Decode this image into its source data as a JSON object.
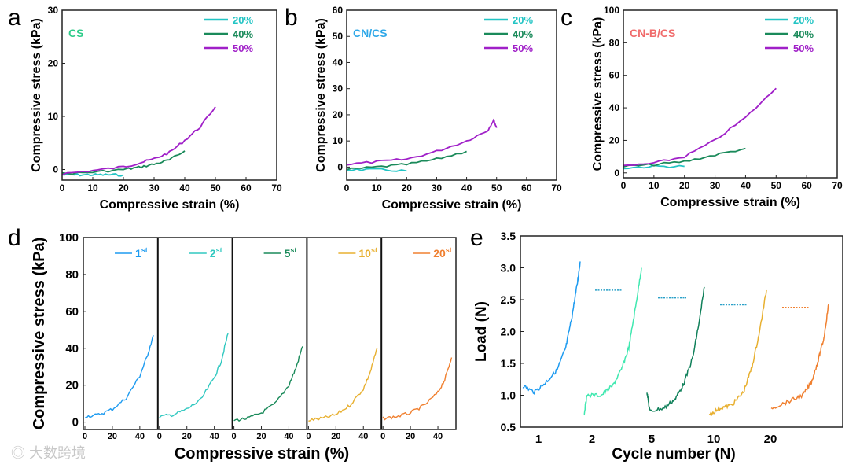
{
  "watermark": "大数跨境",
  "chart_data": [
    {
      "panel": "a",
      "type": "line",
      "title": "CS",
      "title_color": "#2ecc8a",
      "xlabel": "Compressive strain (%)",
      "ylabel": "Compressive stress (kPa)",
      "xlim": [
        0,
        70
      ],
      "ylim": [
        -2,
        30
      ],
      "xticks": [
        0,
        10,
        20,
        30,
        40,
        50,
        60,
        70
      ],
      "yticks": [
        0,
        10,
        20,
        30
      ],
      "legend": "top-right",
      "series": [
        {
          "name": "20%",
          "color": "#22c4c4",
          "points": [
            [
              0,
              -1
            ],
            [
              5,
              -1
            ],
            [
              10,
              -1
            ],
            [
              15,
              -1
            ],
            [
              20,
              -1
            ]
          ]
        },
        {
          "name": "40%",
          "color": "#1a8a5a",
          "points": [
            [
              0,
              -0.8
            ],
            [
              10,
              -0.5
            ],
            [
              20,
              0
            ],
            [
              25,
              0.4
            ],
            [
              30,
              1
            ],
            [
              35,
              1.8
            ],
            [
              40,
              3.5
            ]
          ]
        },
        {
          "name": "50%",
          "color": "#a020c8",
          "points": [
            [
              0,
              -0.8
            ],
            [
              10,
              -0.2
            ],
            [
              20,
              0.5
            ],
            [
              25,
              1.2
            ],
            [
              30,
              2
            ],
            [
              35,
              3.2
            ],
            [
              40,
              5.5
            ],
            [
              45,
              8
            ],
            [
              50,
              11.8
            ]
          ]
        }
      ]
    },
    {
      "panel": "b",
      "type": "line",
      "title": "CN/CS",
      "title_color": "#2fa8e8",
      "xlabel": "Compressive strain (%)",
      "ylabel": "Compressive stress (kPa)",
      "xlim": [
        0,
        70
      ],
      "ylim": [
        -5,
        60
      ],
      "xticks": [
        0,
        10,
        20,
        30,
        40,
        50,
        60,
        70
      ],
      "yticks": [
        0,
        10,
        20,
        30,
        40,
        50,
        60
      ],
      "legend": "top-right",
      "series": [
        {
          "name": "20%",
          "color": "#22c4c4",
          "points": [
            [
              0,
              -1
            ],
            [
              10,
              -1
            ],
            [
              20,
              -1.5
            ]
          ]
        },
        {
          "name": "40%",
          "color": "#1a8a5a",
          "points": [
            [
              0,
              -1
            ],
            [
              10,
              0
            ],
            [
              20,
              1
            ],
            [
              30,
              3
            ],
            [
              40,
              6
            ]
          ]
        },
        {
          "name": "50%",
          "color": "#a020c8",
          "points": [
            [
              0,
              1
            ],
            [
              10,
              2
            ],
            [
              20,
              3
            ],
            [
              30,
              6
            ],
            [
              40,
              10
            ],
            [
              47,
              14
            ],
            [
              49,
              18
            ],
            [
              50,
              15
            ]
          ]
        }
      ]
    },
    {
      "panel": "c",
      "type": "line",
      "title": "CN-B/CS",
      "title_color": "#f06a6a",
      "xlabel": "Compressive strain (%)",
      "ylabel": "Compressive stress (kPa)",
      "xlim": [
        0,
        70
      ],
      "ylim": [
        -3,
        100
      ],
      "xticks": [
        0,
        10,
        20,
        30,
        40,
        50,
        60,
        70
      ],
      "yticks": [
        0,
        20,
        40,
        60,
        80,
        100
      ],
      "legend": "top-right",
      "series": [
        {
          "name": "20%",
          "color": "#22c4c4",
          "points": [
            [
              0,
              3
            ],
            [
              10,
              4
            ],
            [
              20,
              4
            ]
          ]
        },
        {
          "name": "40%",
          "color": "#1a8a5a",
          "points": [
            [
              0,
              4
            ],
            [
              10,
              5
            ],
            [
              20,
              7
            ],
            [
              30,
              11
            ],
            [
              40,
              15
            ]
          ]
        },
        {
          "name": "50%",
          "color": "#a020c8",
          "points": [
            [
              0,
              4
            ],
            [
              10,
              6
            ],
            [
              20,
              10
            ],
            [
              30,
              20
            ],
            [
              40,
              34
            ],
            [
              50,
              52
            ]
          ]
        }
      ]
    },
    {
      "panel": "d",
      "type": "line",
      "xlabel": "Compressive strain (%)",
      "ylabel": "Compressive stress (kPa)",
      "xlim": [
        0,
        52
      ],
      "ylim": [
        -4,
        100
      ],
      "xticks": [
        0,
        20,
        40
      ],
      "yticks": [
        0,
        20,
        40,
        60,
        80,
        100
      ],
      "subpanels": [
        {
          "name": "1",
          "sup": "st",
          "color": "#1e9bf0",
          "points": [
            [
              0,
              3
            ],
            [
              10,
              4
            ],
            [
              20,
              7
            ],
            [
              30,
              13
            ],
            [
              40,
              25
            ],
            [
              45,
              35
            ],
            [
              50,
              47
            ]
          ]
        },
        {
          "name": "2",
          "sup": "st",
          "color": "#30c8c0",
          "points": [
            [
              0,
              3
            ],
            [
              10,
              4
            ],
            [
              20,
              7
            ],
            [
              30,
              12
            ],
            [
              40,
              24
            ],
            [
              45,
              33
            ],
            [
              50,
              48
            ]
          ]
        },
        {
          "name": "5",
          "sup": "st",
          "color": "#1a8a5a",
          "points": [
            [
              0,
              1
            ],
            [
              10,
              2
            ],
            [
              20,
              5
            ],
            [
              30,
              10
            ],
            [
              40,
              20
            ],
            [
              45,
              29
            ],
            [
              50,
              41
            ]
          ]
        },
        {
          "name": "10",
          "sup": "st",
          "color": "#e8b030",
          "points": [
            [
              0,
              1
            ],
            [
              10,
              2
            ],
            [
              20,
              4
            ],
            [
              30,
              9
            ],
            [
              40,
              18
            ],
            [
              45,
              27
            ],
            [
              50,
              40
            ]
          ]
        },
        {
          "name": "20",
          "sup": "st",
          "color": "#f08030",
          "points": [
            [
              0,
              2
            ],
            [
              10,
              3
            ],
            [
              20,
              5
            ],
            [
              30,
              9
            ],
            [
              40,
              16
            ],
            [
              45,
              23
            ],
            [
              50,
              35
            ]
          ]
        }
      ]
    },
    {
      "panel": "e",
      "type": "line",
      "xlabel": "Cycle number (N)",
      "ylabel": "Load (N)",
      "ylim": [
        0.5,
        3.5
      ],
      "yticks": [
        0.5,
        1.0,
        1.5,
        2.0,
        2.5,
        3.0,
        3.5
      ],
      "categories": [
        "1",
        "2",
        "5",
        "10",
        "20"
      ],
      "series": [
        {
          "name": "1",
          "color": "#1e9bf0",
          "dash_level": null,
          "points": [
            [
              0,
              1.15
            ],
            [
              0.2,
              1.05
            ],
            [
              0.4,
              1.2
            ],
            [
              0.6,
              1.4
            ],
            [
              0.75,
              1.75
            ],
            [
              0.85,
              2.2
            ],
            [
              0.95,
              2.75
            ],
            [
              1,
              3.1
            ]
          ]
        },
        {
          "name": "2",
          "color": "#40e8b0",
          "dash_level": 2.65,
          "points": [
            [
              0,
              0.7
            ],
            [
              0.05,
              1.0
            ],
            [
              0.3,
              1.0
            ],
            [
              0.5,
              1.15
            ],
            [
              0.65,
              1.4
            ],
            [
              0.78,
              1.75
            ],
            [
              0.9,
              2.4
            ],
            [
              1,
              3.0
            ]
          ]
        },
        {
          "name": "5",
          "color": "#10805a",
          "dash_level": 2.53,
          "points": [
            [
              0,
              1.05
            ],
            [
              0.05,
              0.75
            ],
            [
              0.3,
              0.8
            ],
            [
              0.5,
              0.95
            ],
            [
              0.65,
              1.2
            ],
            [
              0.8,
              1.6
            ],
            [
              0.92,
              2.2
            ],
            [
              1,
              2.7
            ]
          ]
        },
        {
          "name": "10",
          "color": "#e8b030",
          "dash_level": 2.42,
          "points": [
            [
              0,
              0.7
            ],
            [
              0.2,
              0.8
            ],
            [
              0.4,
              0.85
            ],
            [
              0.6,
              1.05
            ],
            [
              0.75,
              1.45
            ],
            [
              0.88,
              2.0
            ],
            [
              1,
              2.65
            ]
          ]
        },
        {
          "name": "20",
          "color": "#f08030",
          "dash_level": 2.38,
          "points": [
            [
              0,
              0.8
            ],
            [
              0.3,
              0.9
            ],
            [
              0.55,
              1.0
            ],
            [
              0.7,
              1.2
            ],
            [
              0.82,
              1.55
            ],
            [
              0.92,
              1.9
            ],
            [
              1,
              2.43
            ]
          ]
        }
      ]
    }
  ]
}
